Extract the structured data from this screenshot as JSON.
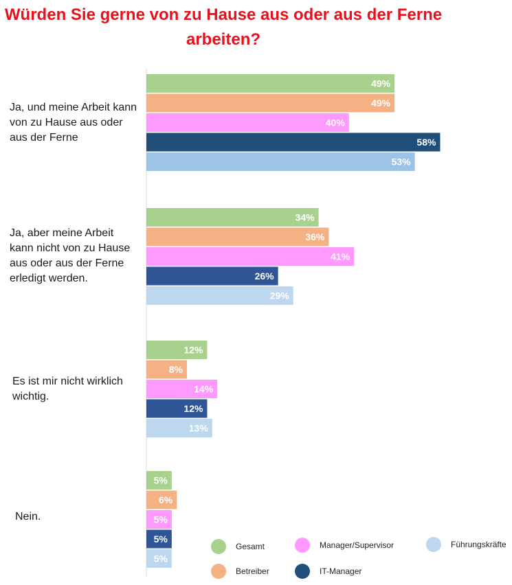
{
  "title": "Würden Sie gerne von zu Hause aus oder aus der Ferne arbeiten?",
  "chart_data": {
    "type": "bar",
    "orientation": "horizontal",
    "categories": [
      "Ja, und meine Arbeit kann von zu Hause aus oder aus der Ferne",
      "Ja, aber meine Arbeit kann nicht von zu Hause aus oder aus der Ferne erledigt werden.",
      "Es ist mir nicht wirklich wichtig.",
      "Nein."
    ],
    "series": [
      {
        "name": "Gesamt",
        "color": "#a9d18e",
        "values": [
          49,
          34,
          12,
          5
        ]
      },
      {
        "name": "Betreiber",
        "color": "#f4b183",
        "values": [
          49,
          36,
          8,
          6
        ]
      },
      {
        "name": "Manager/Supervisor",
        "color": "#ff99ff",
        "values": [
          40,
          41,
          14,
          5
        ]
      },
      {
        "name": "IT-Manager",
        "color": "#1f4e79",
        "values": [
          58,
          26,
          12,
          5
        ]
      },
      {
        "name": "Führungskräfte",
        "color": "#bdd7ee",
        "values": [
          53,
          29,
          13,
          5
        ]
      }
    ],
    "value_suffix": "%",
    "xlim": [
      0,
      100
    ],
    "grid": false,
    "legend_position": "bottom-right"
  }
}
